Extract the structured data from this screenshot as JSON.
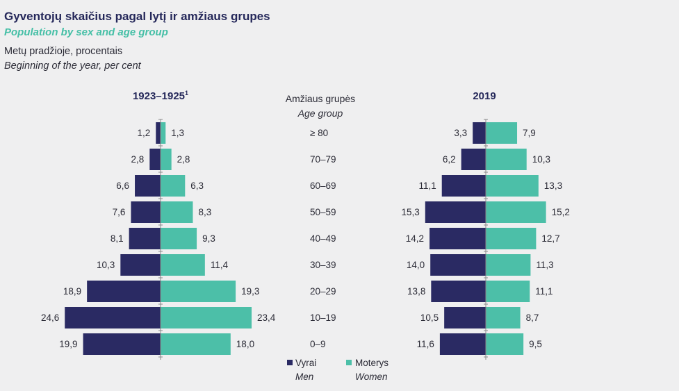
{
  "title": "Gyventojų skaičius pagal lytį ir amžiaus grupes",
  "subtitle": "Population by sex and age group",
  "unit_lt": "Metų pradžioje, procentais",
  "unit_en": "Beginning of the year, per cent",
  "colors": {
    "men": "#2a2a63",
    "women": "#4cbfa8",
    "axis": "#8a8a8a"
  },
  "chart_data": [
    {
      "type": "bar",
      "orientation": "horizontal-pyramid",
      "title": "1923–1925",
      "title_sup": "1",
      "categories": [
        "≥ 80",
        "70–79",
        "60–69",
        "50–59",
        "40–49",
        "30–39",
        "20–29",
        "10–19",
        "0–9"
      ],
      "series": [
        {
          "name": "Vyrai",
          "name_en": "Men",
          "values": [
            1.2,
            2.8,
            6.6,
            7.6,
            8.1,
            10.3,
            18.9,
            24.6,
            19.9
          ],
          "labels": [
            "1,2",
            "2,8",
            "6,6",
            "7,6",
            "8,1",
            "10,3",
            "18,9",
            "24,6",
            "19,9"
          ]
        },
        {
          "name": "Moterys",
          "name_en": "Women",
          "values": [
            1.3,
            2.8,
            6.3,
            8.3,
            9.3,
            11.4,
            19.3,
            23.4,
            18.0
          ],
          "labels": [
            "1,3",
            "2,8",
            "6,3",
            "8,3",
            "9,3",
            "11,4",
            "19,3",
            "23,4",
            "18,0"
          ]
        }
      ]
    },
    {
      "type": "bar",
      "orientation": "horizontal-pyramid",
      "title": "2019",
      "categories": [
        "≥ 80",
        "70–79",
        "60–69",
        "50–59",
        "40–49",
        "30–39",
        "20–29",
        "10–19",
        "0–9"
      ],
      "series": [
        {
          "name": "Vyrai",
          "name_en": "Men",
          "values": [
            3.3,
            6.2,
            11.1,
            15.3,
            14.2,
            14.0,
            13.8,
            10.5,
            11.6
          ],
          "labels": [
            "3,3",
            "6,2",
            "11,1",
            "15,3",
            "14,2",
            "14,0",
            "13,8",
            "10,5",
            "11,6"
          ]
        },
        {
          "name": "Moterys",
          "name_en": "Women",
          "values": [
            7.9,
            10.3,
            13.3,
            15.2,
            12.7,
            11.3,
            11.1,
            8.7,
            9.5
          ],
          "labels": [
            "7,9",
            "10,3",
            "13,3",
            "15,2",
            "12,7",
            "11,3",
            "11,1",
            "8,7",
            "9,5"
          ]
        }
      ]
    }
  ],
  "age_axis": {
    "title_lt": "Amžiaus grupės",
    "title_en": "Age group",
    "labels": [
      "≥ 80",
      "70–79",
      "60–69",
      "50–59",
      "40–49",
      "30–39",
      "20–29",
      "10–19",
      "0–9"
    ]
  },
  "legend": [
    {
      "label_lt": "Vyrai",
      "label_en": "Men",
      "color": "#2a2a63"
    },
    {
      "label_lt": "Moterys",
      "label_en": "Women",
      "color": "#4cbfa8"
    }
  ]
}
